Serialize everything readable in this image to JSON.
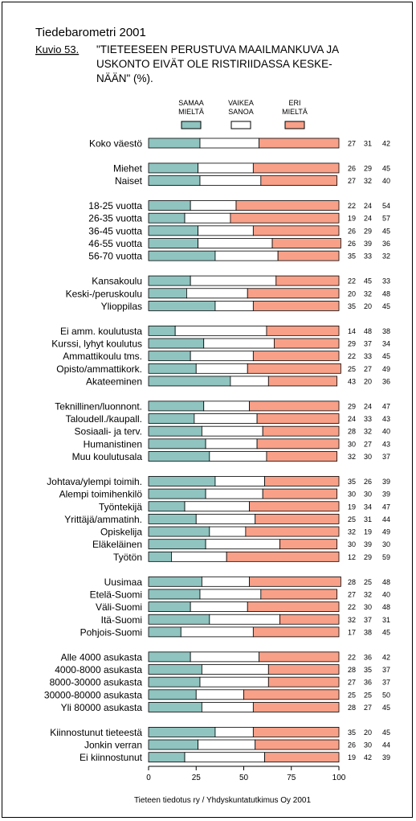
{
  "header": {
    "title": "Tiedebarometri 2001",
    "figure_label": "Kuvio 53.",
    "caption_lines": [
      "\"TIETEESEEN PERUSTUVA MAAILMANKUVA JA",
      "USKONTO EIVÄT OLE RISTIRIIDASSA KESKE-",
      "NÄÄN\" (%)."
    ]
  },
  "legend": [
    {
      "label_lines": [
        "SAMAA",
        "MIELTÄ"
      ],
      "color": "#8FC4C0"
    },
    {
      "label_lines": [
        "VAIKEA",
        "SANOA"
      ],
      "color": "#FFFFFF"
    },
    {
      "label_lines": [
        "ERI",
        "MIELTÄ"
      ],
      "color": "#F9A088"
    }
  ],
  "footer": {
    "source": "Tieteen tiedotus ry / Yhdyskuntatutkimus Oy 2001"
  },
  "chart_data": {
    "type": "bar",
    "orientation": "horizontal",
    "stacked": true,
    "xlim": [
      0,
      100
    ],
    "xticks": [
      0,
      25,
      50,
      75,
      100
    ],
    "grid": false,
    "legend_position": "top",
    "series_names": [
      "SAMAA MIELTÄ",
      "VAIKEA SANOA",
      "ERI MIELTÄ"
    ],
    "colors": [
      "#8FC4C0",
      "#FFFFFF",
      "#F9A088"
    ],
    "groups": [
      {
        "rows": [
          {
            "label": "Koko väestö",
            "values": [
              27,
              31,
              42
            ]
          }
        ]
      },
      {
        "rows": [
          {
            "label": "Miehet",
            "values": [
              26,
              29,
              45
            ]
          },
          {
            "label": "Naiset",
            "values": [
              27,
              32,
              40
            ]
          }
        ]
      },
      {
        "rows": [
          {
            "label": "18-25 vuotta",
            "values": [
              22,
              24,
              54
            ]
          },
          {
            "label": "26-35 vuotta",
            "values": [
              19,
              24,
              57
            ]
          },
          {
            "label": "36-45 vuotta",
            "values": [
              26,
              29,
              45
            ]
          },
          {
            "label": "46-55 vuotta",
            "values": [
              26,
              39,
              36
            ]
          },
          {
            "label": "56-70 vuotta",
            "values": [
              35,
              33,
              32
            ]
          }
        ]
      },
      {
        "rows": [
          {
            "label": "Kansakoulu",
            "values": [
              22,
              45,
              33
            ]
          },
          {
            "label": "Keski-/peruskoulu",
            "values": [
              20,
              32,
              48
            ]
          },
          {
            "label": "Ylioppilas",
            "values": [
              35,
              20,
              45
            ]
          }
        ]
      },
      {
        "rows": [
          {
            "label": "Ei amm. koulutusta",
            "values": [
              14,
              48,
              38
            ]
          },
          {
            "label": "Kurssi, lyhyt koulutus",
            "values": [
              29,
              37,
              34
            ]
          },
          {
            "label": "Ammattikoulu tms.",
            "values": [
              22,
              33,
              45
            ]
          },
          {
            "label": "Opisto/ammattikork.",
            "values": [
              25,
              27,
              49
            ]
          },
          {
            "label": "Akateeminen",
            "values": [
              43,
              20,
              36
            ]
          }
        ]
      },
      {
        "rows": [
          {
            "label": "Teknillinen/luonnont.",
            "values": [
              29,
              24,
              47
            ]
          },
          {
            "label": "Taloudell./kaupall.",
            "values": [
              24,
              33,
              43
            ]
          },
          {
            "label": "Sosiaali- ja terv.",
            "values": [
              28,
              32,
              40
            ]
          },
          {
            "label": "Humanistinen",
            "values": [
              30,
              27,
              43
            ]
          },
          {
            "label": "Muu koulutusala",
            "values": [
              32,
              30,
              37
            ]
          }
        ]
      },
      {
        "rows": [
          {
            "label": "Johtava/ylempi toimih.",
            "values": [
              35,
              26,
              39
            ]
          },
          {
            "label": "Alempi toimihenkilö",
            "values": [
              30,
              30,
              39
            ]
          },
          {
            "label": "Työntekijä",
            "values": [
              19,
              34,
              47
            ]
          },
          {
            "label": "Yrittäjä/ammatinh.",
            "values": [
              25,
              31,
              44
            ]
          },
          {
            "label": "Opiskelija",
            "values": [
              32,
              19,
              49
            ]
          },
          {
            "label": "Eläkeläinen",
            "values": [
              30,
              39,
              30
            ]
          },
          {
            "label": "Työtön",
            "values": [
              12,
              29,
              59
            ]
          }
        ]
      },
      {
        "rows": [
          {
            "label": "Uusimaa",
            "values": [
              28,
              25,
              48
            ]
          },
          {
            "label": "Etelä-Suomi",
            "values": [
              27,
              32,
              40
            ]
          },
          {
            "label": "Väli-Suomi",
            "values": [
              22,
              30,
              48
            ]
          },
          {
            "label": "Itä-Suomi",
            "values": [
              32,
              37,
              31
            ]
          },
          {
            "label": "Pohjois-Suomi",
            "values": [
              17,
              38,
              45
            ]
          }
        ]
      },
      {
        "rows": [
          {
            "label": "Alle 4000 asukasta",
            "values": [
              22,
              36,
              42
            ]
          },
          {
            "label": "4000-8000 asukasta",
            "values": [
              28,
              35,
              37
            ]
          },
          {
            "label": "8000-30000 asukasta",
            "values": [
              27,
              36,
              37
            ]
          },
          {
            "label": "30000-80000 asukasta",
            "values": [
              25,
              25,
              50
            ]
          },
          {
            "label": "Yli 80000 asukasta",
            "values": [
              28,
              27,
              45
            ]
          }
        ]
      },
      {
        "rows": [
          {
            "label": "Kiinnostunut tieteestä",
            "values": [
              35,
              20,
              45
            ]
          },
          {
            "label": "Jonkin verran",
            "values": [
              26,
              30,
              44
            ]
          },
          {
            "label": "Ei kiinnostunut",
            "values": [
              19,
              42,
              39
            ]
          }
        ]
      }
    ]
  }
}
